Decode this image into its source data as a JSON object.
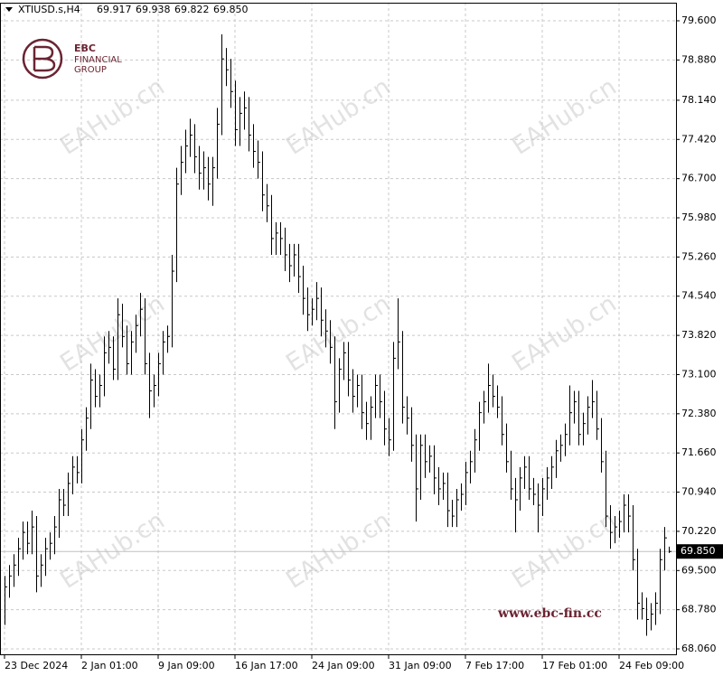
{
  "header": {
    "symbol": "XTIUSD.s,H4",
    "ohlc": [
      "69.917",
      "69.938",
      "69.822",
      "69.850"
    ]
  },
  "logo": {
    "name": "EBC",
    "line1": "FINANCIAL",
    "line2": "GROUP"
  },
  "watermark": "EAHub.cn",
  "website": "www.ebc-fin.cc",
  "chart_data": {
    "type": "ohlc-bar",
    "color": "#000000",
    "grid": true,
    "ylim": [
      67.944,
      79.932
    ],
    "yticks": [
      {
        "value": 79.6,
        "label": "79.600"
      },
      {
        "value": 78.88,
        "label": "78.880"
      },
      {
        "value": 78.14,
        "label": "78.140"
      },
      {
        "value": 77.42,
        "label": "77.420"
      },
      {
        "value": 76.7,
        "label": "76.700"
      },
      {
        "value": 75.98,
        "label": "75.980"
      },
      {
        "value": 75.26,
        "label": "75.260"
      },
      {
        "value": 74.54,
        "label": "74.540"
      },
      {
        "value": 73.82,
        "label": "73.820"
      },
      {
        "value": 73.1,
        "label": "73.100"
      },
      {
        "value": 72.38,
        "label": "72.380"
      },
      {
        "value": 71.66,
        "label": "71.660"
      },
      {
        "value": 70.94,
        "label": "70.940"
      },
      {
        "value": 70.22,
        "label": "70.220"
      },
      {
        "value": 69.5,
        "label": "69.500"
      },
      {
        "value": 68.78,
        "label": "68.780"
      },
      {
        "value": 68.06,
        "label": "68.060"
      }
    ],
    "price_line": {
      "value": 69.85,
      "label": "69.850"
    },
    "categories": [
      "23 Dec 2024",
      null,
      null,
      null,
      null,
      null,
      null,
      null,
      null,
      null,
      null,
      null,
      null,
      null,
      null,
      null,
      null,
      "2 Jan 01:00",
      null,
      null,
      null,
      null,
      null,
      null,
      null,
      null,
      null,
      null,
      null,
      null,
      null,
      null,
      null,
      null,
      "9 Jan 09:00",
      null,
      null,
      null,
      null,
      null,
      null,
      null,
      null,
      null,
      null,
      null,
      null,
      null,
      null,
      null,
      null,
      "16 Jan 17:00",
      null,
      null,
      null,
      null,
      null,
      null,
      null,
      null,
      null,
      null,
      null,
      null,
      null,
      null,
      null,
      null,
      "24 Jan 09:00",
      null,
      null,
      null,
      null,
      null,
      null,
      null,
      null,
      null,
      null,
      null,
      null,
      null,
      null,
      null,
      null,
      "31 Jan 09:00",
      null,
      null,
      null,
      null,
      null,
      null,
      null,
      null,
      null,
      null,
      null,
      null,
      null,
      null,
      null,
      null,
      "7 Feb 17:00",
      null,
      null,
      null,
      null,
      null,
      null,
      null,
      null,
      null,
      null,
      null,
      null,
      null,
      null,
      null,
      null,
      "17 Feb 01:00",
      null,
      null,
      null,
      null,
      null,
      null,
      null,
      null,
      null,
      null,
      null,
      null,
      null,
      null,
      null,
      null,
      "24 Feb 09:00",
      null,
      null,
      null,
      null,
      null,
      null,
      null,
      null,
      null,
      null,
      null
    ],
    "high": [
      69.4,
      69.6,
      69.8,
      70.1,
      70.4,
      70.4,
      70.6,
      70.5,
      69.8,
      70.1,
      70.2,
      70.5,
      71.0,
      71.0,
      71.3,
      71.6,
      71.6,
      72.1,
      72.5,
      73.3,
      73.2,
      73.1,
      73.8,
      73.9,
      73.8,
      74.5,
      74.4,
      74.0,
      73.9,
      74.2,
      74.6,
      74.5,
      73.5,
      73.1,
      73.5,
      73.9,
      74.0,
      75.3,
      76.9,
      77.3,
      77.6,
      77.8,
      77.7,
      77.3,
      77.2,
      77.1,
      77.1,
      78.0,
      79.35,
      79.1,
      78.9,
      78.5,
      78.2,
      78.3,
      78.2,
      77.7,
      77.4,
      77.2,
      76.6,
      76.4,
      75.9,
      75.9,
      75.8,
      75.5,
      75.5,
      75.5,
      75.1,
      74.7,
      74.5,
      74.8,
      74.7,
      74.3,
      74.1,
      73.8,
      73.4,
      73.7,
      73.7,
      73.2,
      73.1,
      73.1,
      72.6,
      72.7,
      73.1,
      73.1,
      72.8,
      72.3,
      73.7,
      74.5,
      73.9,
      72.7,
      72.5,
      72.0,
      72.0,
      72.0,
      71.8,
      71.8,
      71.4,
      71.3,
      71.3,
      70.8,
      71.0,
      71.1,
      71.5,
      71.7,
      72.1,
      72.6,
      72.8,
      73.3,
      73.1,
      72.9,
      72.7,
      72.2,
      71.7,
      71.2,
      71.4,
      71.6,
      71.6,
      71.2,
      71.1,
      71.2,
      71.4,
      71.6,
      71.9,
      72.0,
      72.2,
      72.9,
      72.8,
      72.8,
      72.4,
      72.7,
      73.0,
      72.8,
      72.3,
      71.7,
      70.7,
      70.5,
      70.6,
      70.9,
      70.9,
      70.7,
      69.9,
      69.1,
      69.0,
      68.9,
      69.1,
      69.9,
      70.3,
      69.938
    ],
    "low": [
      68.5,
      69.0,
      69.2,
      69.4,
      69.7,
      69.8,
      69.8,
      69.1,
      69.2,
      69.4,
      69.7,
      69.8,
      70.1,
      70.5,
      70.5,
      70.9,
      71.1,
      71.1,
      71.7,
      72.1,
      72.5,
      72.5,
      72.7,
      73.3,
      73.0,
      73.0,
      73.6,
      73.1,
      73.1,
      73.5,
      73.8,
      73.1,
      72.3,
      72.5,
      72.7,
      73.1,
      73.5,
      73.6,
      74.8,
      76.4,
      76.8,
      77.1,
      76.8,
      76.5,
      76.5,
      76.3,
      76.2,
      76.7,
      77.5,
      78.4,
      78.0,
      77.3,
      77.3,
      77.6,
      77.2,
      76.9,
      76.7,
      76.1,
      75.9,
      75.3,
      75.3,
      75.3,
      75.0,
      74.8,
      74.9,
      74.6,
      74.2,
      73.9,
      74.0,
      74.1,
      73.8,
      73.6,
      73.3,
      72.1,
      72.4,
      73.0,
      72.7,
      72.4,
      72.5,
      72.1,
      71.9,
      71.9,
      72.3,
      72.3,
      71.8,
      71.6,
      71.7,
      73.2,
      72.2,
      72.0,
      71.5,
      70.4,
      70.8,
      71.2,
      71.3,
      70.9,
      70.7,
      70.8,
      70.3,
      70.3,
      70.3,
      70.6,
      70.7,
      71.1,
      71.3,
      71.7,
      72.2,
      72.4,
      72.5,
      72.3,
      71.8,
      71.3,
      70.8,
      70.2,
      70.6,
      71.0,
      70.8,
      70.7,
      70.2,
      70.5,
      70.8,
      71.0,
      71.2,
      71.5,
      71.6,
      71.8,
      72.2,
      71.8,
      71.8,
      72.0,
      72.3,
      71.9,
      71.3,
      70.3,
      69.9,
      70.0,
      70.1,
      70.2,
      70.2,
      69.5,
      68.6,
      68.6,
      68.3,
      68.4,
      68.5,
      68.7,
      69.5,
      69.822
    ],
    "close": [
      69.2,
      69.4,
      69.6,
      69.9,
      70.2,
      70.0,
      70.3,
      69.4,
      69.6,
      69.9,
      70.0,
      70.3,
      70.8,
      70.7,
      71.1,
      71.4,
      71.3,
      71.9,
      72.3,
      73.0,
      72.7,
      72.9,
      73.5,
      73.6,
      73.2,
      74.2,
      73.8,
      73.3,
      73.7,
      74.0,
      74.3,
      73.3,
      72.8,
      72.9,
      73.3,
      73.7,
      73.8,
      75.0,
      76.6,
      77.0,
      77.3,
      77.5,
      77.1,
      76.8,
      76.9,
      76.6,
      76.9,
      77.7,
      78.9,
      78.7,
      78.3,
      77.6,
      77.9,
      78.0,
      77.5,
      77.2,
      77.0,
      76.4,
      76.2,
      75.6,
      75.7,
      75.6,
      75.3,
      75.1,
      75.3,
      74.9,
      74.5,
      74.2,
      74.3,
      74.5,
      74.1,
      73.9,
      73.6,
      72.6,
      73.2,
      73.5,
      73.0,
      72.7,
      72.9,
      72.4,
      72.2,
      72.5,
      72.9,
      72.6,
      72.1,
      71.9,
      73.4,
      73.7,
      72.5,
      72.3,
      71.8,
      71.0,
      71.8,
      71.5,
      71.6,
      71.2,
      71.0,
      71.1,
      70.6,
      70.5,
      70.8,
      70.9,
      71.3,
      71.5,
      71.9,
      72.4,
      72.6,
      72.9,
      72.7,
      72.5,
      72.0,
      71.5,
      71.0,
      70.8,
      71.2,
      71.4,
      71.0,
      70.9,
      70.7,
      71.0,
      71.2,
      71.4,
      71.7,
      71.8,
      72.0,
      72.4,
      72.6,
      72.0,
      72.2,
      72.5,
      72.6,
      72.1,
      71.5,
      70.5,
      70.2,
      70.3,
      70.4,
      70.7,
      70.5,
      69.7,
      68.9,
      68.8,
      68.6,
      68.7,
      68.9,
      69.7,
      70.1,
      69.85
    ]
  }
}
